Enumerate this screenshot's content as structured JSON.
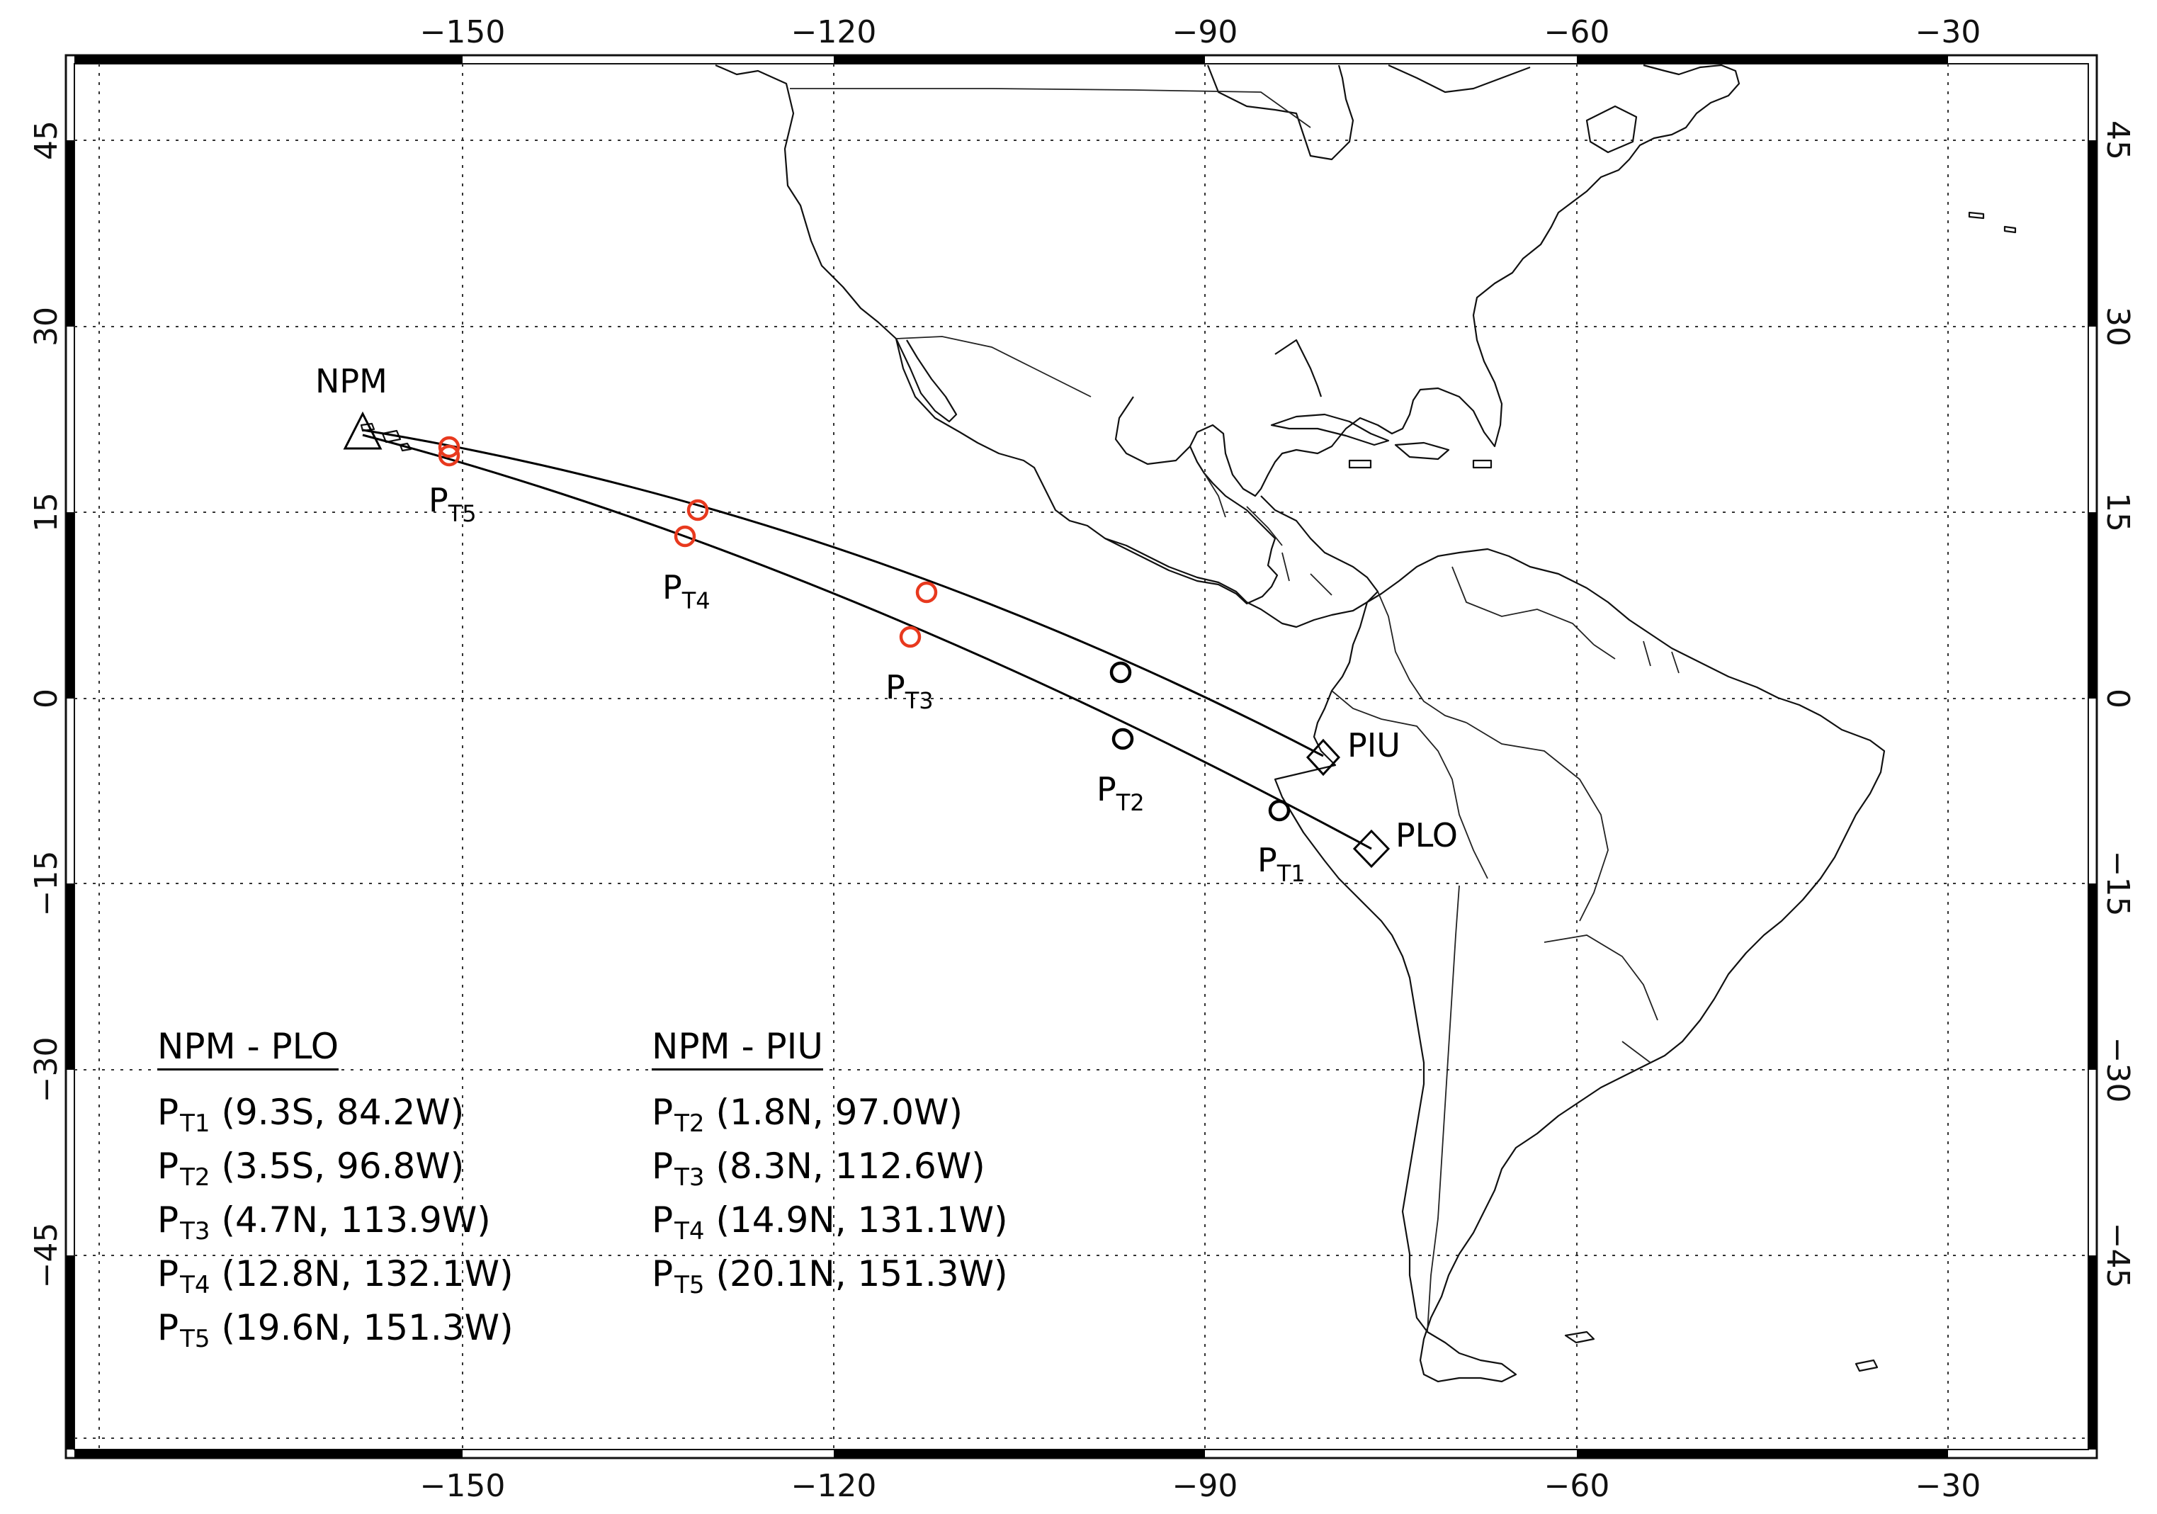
{
  "map": {
    "lon_ticks": [
      "−150",
      "−120",
      "−90",
      "−60",
      "−30"
    ],
    "lat_ticks": [
      "45",
      "30",
      "15",
      "0",
      "−15",
      "−30",
      "−45"
    ],
    "grid": true
  },
  "stations": {
    "npm": "NPM",
    "piu": "PIU",
    "plo": "PLO"
  },
  "point_labels": {
    "p": "P",
    "t1": "T1",
    "t2": "T2",
    "t3": "T3",
    "t4": "T4",
    "t5": "T5"
  },
  "legend_plo": {
    "title": "NPM - PLO",
    "rows": [
      {
        "p": "P",
        "sub": "T1",
        "coords": "(9.3S, 84.2W)"
      },
      {
        "p": "P",
        "sub": "T2",
        "coords": "(3.5S, 96.8W)"
      },
      {
        "p": "P",
        "sub": "T3",
        "coords": "(4.7N, 113.9W)"
      },
      {
        "p": "P",
        "sub": "T4",
        "coords": "(12.8N, 132.1W)"
      },
      {
        "p": "P",
        "sub": "T5",
        "coords": "(19.6N, 151.3W)"
      }
    ]
  },
  "legend_piu": {
    "title": "NPM - PIU",
    "rows": [
      {
        "p": "P",
        "sub": "T2",
        "coords": "(1.8N, 97.0W)"
      },
      {
        "p": "P",
        "sub": "T3",
        "coords": "(8.3N, 112.6W)"
      },
      {
        "p": "P",
        "sub": "T4",
        "coords": "(14.9N, 131.1W)"
      },
      {
        "p": "P",
        "sub": "T5",
        "coords": "(20.1N, 151.3W)"
      }
    ]
  },
  "colors": {
    "ionospheric_points_red": "#e8391e",
    "ionospheric_points_black": "#000000",
    "grid": "#333333",
    "coastline": "#111111"
  }
}
